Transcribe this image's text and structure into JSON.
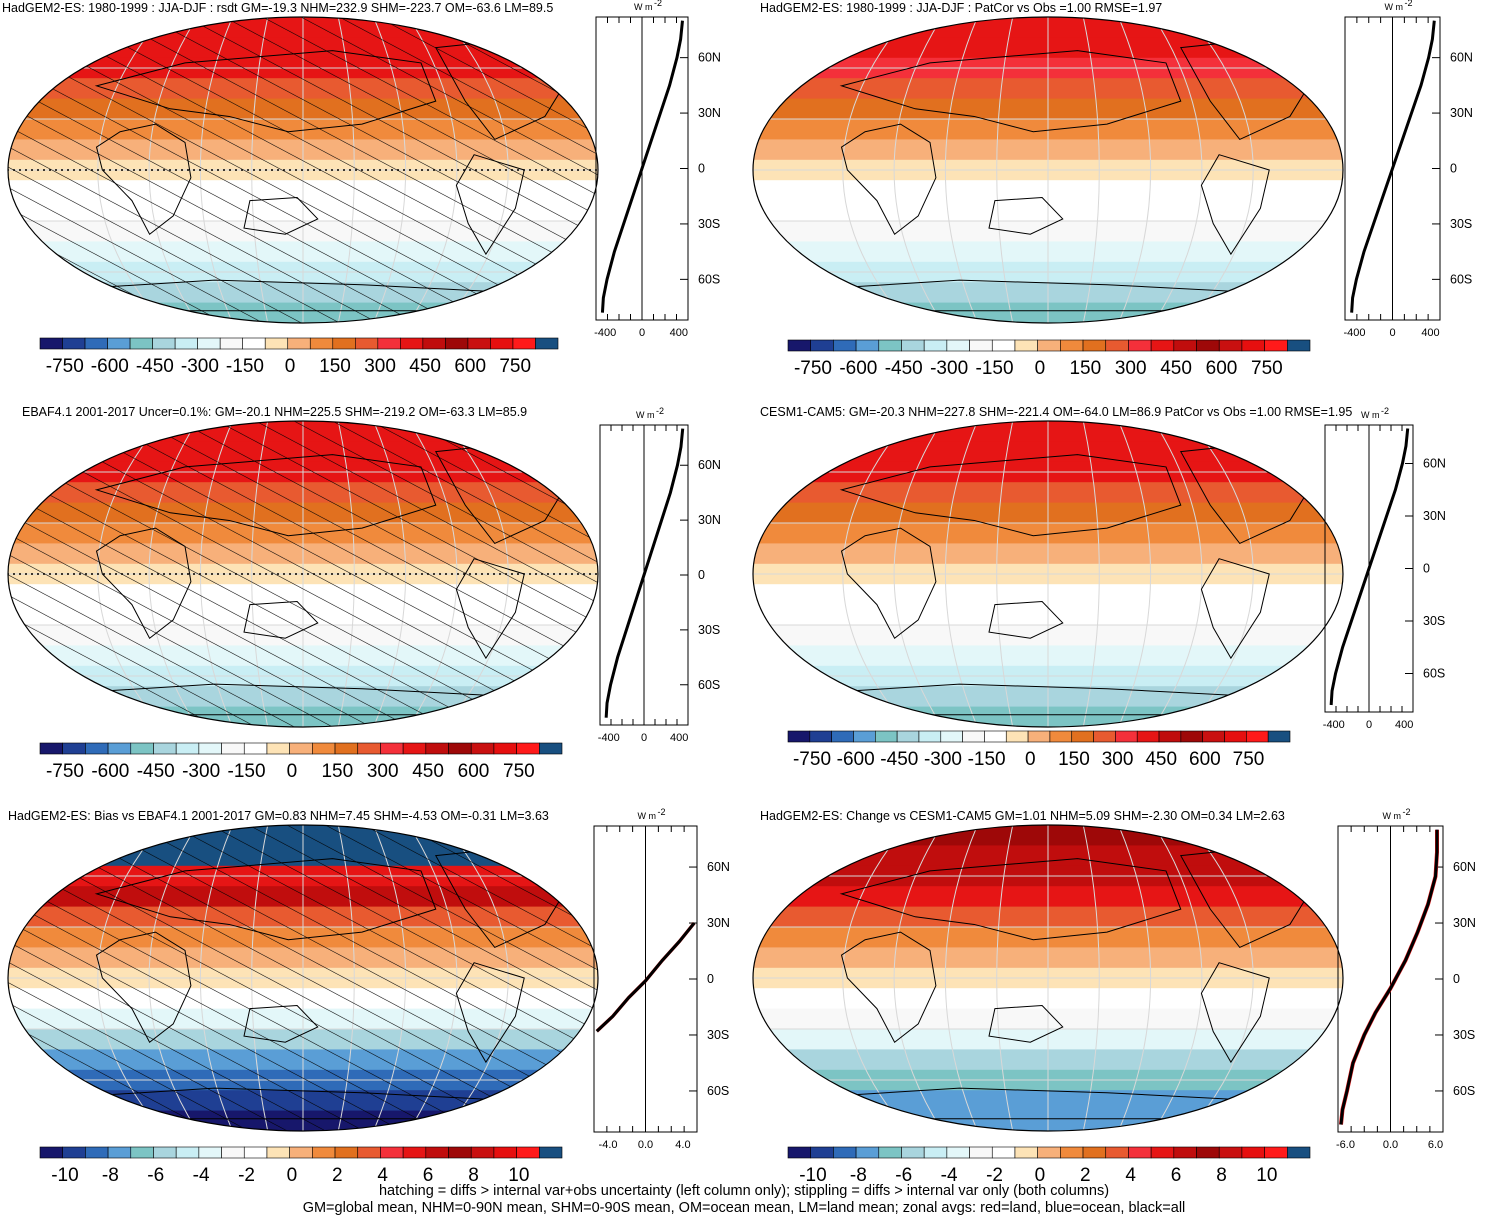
{
  "palettes": {
    "level_colors": [
      "#17176b",
      "#1f3f93",
      "#2f6bb8",
      "#5a9ed6",
      "#7cc4c4",
      "#a9d5de",
      "#c9eef4",
      "#e3f7f9",
      "#f8f8f8",
      "#ffffff",
      "#fde3b6",
      "#f7b07a",
      "#f08a3c",
      "#e1701f",
      "#e85a30",
      "#f4303a",
      "#e61515",
      "#c00d0d",
      "#9e0808",
      "#c91010",
      "#e60f0f",
      "#ff1a1a",
      "#184f80"
    ],
    "map_fill_color": "#ffffff"
  },
  "colorbars": {
    "mean_labels": [
      "-750",
      "-600",
      "-450",
      "-300",
      "-150",
      "0",
      "150",
      "300",
      "450",
      "600",
      "750"
    ],
    "diff_labels": [
      "-10",
      "-8",
      "-6",
      "-4",
      "-2",
      "0",
      "2",
      "4",
      "6",
      "8",
      "10"
    ]
  },
  "zonal_axis": {
    "lat_labels": [
      "60N",
      "30N",
      "0",
      "30S",
      "60S"
    ],
    "lat_values": [
      60,
      30,
      0,
      -30,
      -60
    ],
    "unit": "W m",
    "unit_sup": "-2",
    "mean_ticks": [
      "-400",
      "0",
      "400"
    ],
    "diff_ticks": [
      "-4.0",
      "0.0",
      "4.0"
    ],
    "diff_ticks_change": [
      "-6.0",
      "0.0",
      "6.0"
    ]
  },
  "panels": [
    {
      "id": "model_mean",
      "title": "HadGEM2-ES: 1980-1999 : JJA-DJF : rsdt GM=-19.3 NHM=232.9 SHM=-223.7 OM=-63.6 LM=89.5",
      "hatching": true,
      "stippling": true,
      "scale": "mean",
      "band_colors_north_to_south": [
        "#e61515",
        "#e61515",
        "#e61515",
        "#e85a30",
        "#e1701f",
        "#f08a3c",
        "#f7b07a",
        "#fde3b6",
        "#ffffff",
        "#ffffff",
        "#f8f8f8",
        "#e3f7f9",
        "#c9eef4",
        "#a9d5de",
        "#7cc4c4"
      ]
    },
    {
      "id": "model_mean_nohatch",
      "title": "HadGEM2-ES: 1980-1999 : JJA-DJF : PatCor vs Obs =1.00 RMSE=1.97",
      "hatching": false,
      "stippling": false,
      "scale": "mean",
      "band_colors_north_to_south": [
        "#e61515",
        "#e61515",
        "#f4303a",
        "#e85a30",
        "#e1701f",
        "#f08a3c",
        "#f7b07a",
        "#fde3b6",
        "#ffffff",
        "#ffffff",
        "#f8f8f8",
        "#e3f7f9",
        "#c9eef4",
        "#a9d5de",
        "#7cc4c4"
      ]
    },
    {
      "id": "obs_mean",
      "title": "EBAF4.1 2001-2017 Uncer=0.1%: GM=-20.1 NHM=225.5 SHM=-219.2 OM=-63.3 LM=85.9",
      "hatching": true,
      "stippling": true,
      "scale": "mean",
      "band_colors_north_to_south": [
        "#e61515",
        "#e61515",
        "#e61515",
        "#e85a30",
        "#e1701f",
        "#f08a3c",
        "#f7b07a",
        "#fde3b6",
        "#ffffff",
        "#ffffff",
        "#f8f8f8",
        "#e3f7f9",
        "#c9eef4",
        "#a9d5de",
        "#7cc4c4"
      ]
    },
    {
      "id": "ref_model_mean",
      "title": "CESM1-CAM5: GM=-20.3 NHM=227.8 SHM=-221.4 OM=-64.0 LM=86.9 PatCor vs Obs =1.00 RMSE=1.95",
      "hatching": false,
      "stippling": false,
      "scale": "mean",
      "band_colors_north_to_south": [
        "#e61515",
        "#e61515",
        "#e61515",
        "#e85a30",
        "#e1701f",
        "#f08a3c",
        "#f7b07a",
        "#fde3b6",
        "#ffffff",
        "#ffffff",
        "#f8f8f8",
        "#e3f7f9",
        "#c9eef4",
        "#a9d5de",
        "#7cc4c4"
      ]
    },
    {
      "id": "bias",
      "title": "HadGEM2-ES: Bias vs EBAF4.1 2001-2017 GM=0.83 NHM=7.45 SHM=-4.53 OM=-0.31 LM=3.63",
      "hatching": true,
      "stippling": false,
      "scale": "diff",
      "band_colors_north_to_south": [
        "#184f80",
        "#184f80",
        "#e61515",
        "#c00d0d",
        "#e85a30",
        "#f08a3c",
        "#f7b07a",
        "#fde3b6",
        "#ffffff",
        "#e3f7f9",
        "#a9d5de",
        "#5a9ed6",
        "#2f6bb8",
        "#1f3f93",
        "#17176b"
      ]
    },
    {
      "id": "change",
      "title": "HadGEM2-ES: Change vs CESM1-CAM5 GM=1.01 NHM=5.09 SHM=-2.30 OM=0.34 LM=2.63",
      "hatching": false,
      "stippling": false,
      "scale": "diff",
      "band_colors_north_to_south": [
        "#9e0808",
        "#c00d0d",
        "#c00d0d",
        "#e61515",
        "#e85a30",
        "#f08a3c",
        "#f7b07a",
        "#fde3b6",
        "#ffffff",
        "#f8f8f8",
        "#e3f7f9",
        "#a9d5de",
        "#7cc4c4",
        "#5a9ed6",
        "#5a9ed6"
      ]
    }
  ],
  "chart_data": [
    {
      "type": "line",
      "panel": "model_mean",
      "series": [
        {
          "x": [
            -430,
            -420,
            -380,
            -300,
            -200,
            -80,
            0,
            80,
            200,
            300,
            380,
            420,
            440
          ],
          "y": [
            -78,
            -70,
            -60,
            -45,
            -30,
            -12,
            0,
            12,
            30,
            45,
            60,
            70,
            80
          ]
        }
      ]
    },
    {
      "type": "line",
      "panel": "model_mean_nohatch",
      "series": [
        {
          "x": [
            -430,
            -420,
            -380,
            -300,
            -200,
            -80,
            0,
            80,
            200,
            300,
            380,
            420,
            440
          ],
          "y": [
            -78,
            -70,
            -60,
            -45,
            -30,
            -12,
            0,
            12,
            30,
            45,
            60,
            70,
            80
          ]
        }
      ]
    },
    {
      "type": "line",
      "panel": "obs_mean",
      "series": [
        {
          "x": [
            -430,
            -420,
            -380,
            -300,
            -200,
            -80,
            0,
            80,
            200,
            300,
            380,
            420,
            440
          ],
          "y": [
            -78,
            -70,
            -60,
            -45,
            -30,
            -12,
            0,
            12,
            30,
            45,
            60,
            70,
            80
          ]
        }
      ]
    },
    {
      "type": "line",
      "panel": "ref_model_mean",
      "series": [
        {
          "x": [
            -430,
            -420,
            -380,
            -300,
            -200,
            -80,
            0,
            80,
            200,
            300,
            380,
            420,
            440
          ],
          "y": [
            -78,
            -70,
            -60,
            -45,
            -30,
            -12,
            0,
            12,
            30,
            45,
            60,
            70,
            80
          ]
        }
      ]
    },
    {
      "type": "line",
      "panel": "bias",
      "series": [
        {
          "x": [
            -5.2,
            -3.5,
            -1.8,
            0,
            1.8,
            3.6,
            5.2
          ],
          "y": [
            -28,
            -20,
            -10,
            -1,
            10,
            20,
            30
          ]
        }
      ]
    },
    {
      "type": "line",
      "panel": "change",
      "series": [
        {
          "x": [
            -6.6,
            -6.4,
            -5.8,
            -5,
            -3.5,
            -2,
            0,
            2,
            3.6,
            5,
            6,
            6.2,
            6.2
          ],
          "y": [
            -78,
            -70,
            -60,
            -45,
            -30,
            -18,
            -5,
            10,
            25,
            40,
            55,
            68,
            80
          ]
        }
      ]
    }
  ],
  "footer": {
    "line1": "hatching = diffs > internal var+obs uncertainty (left column only); stippling = diffs > internal var only (both columns)",
    "line2": "GM=global mean, NHM=0-90N mean, SHM=0-90S mean, OM=ocean mean, LM=land mean; zonal avgs: red=land, blue=ocean, black=all"
  }
}
